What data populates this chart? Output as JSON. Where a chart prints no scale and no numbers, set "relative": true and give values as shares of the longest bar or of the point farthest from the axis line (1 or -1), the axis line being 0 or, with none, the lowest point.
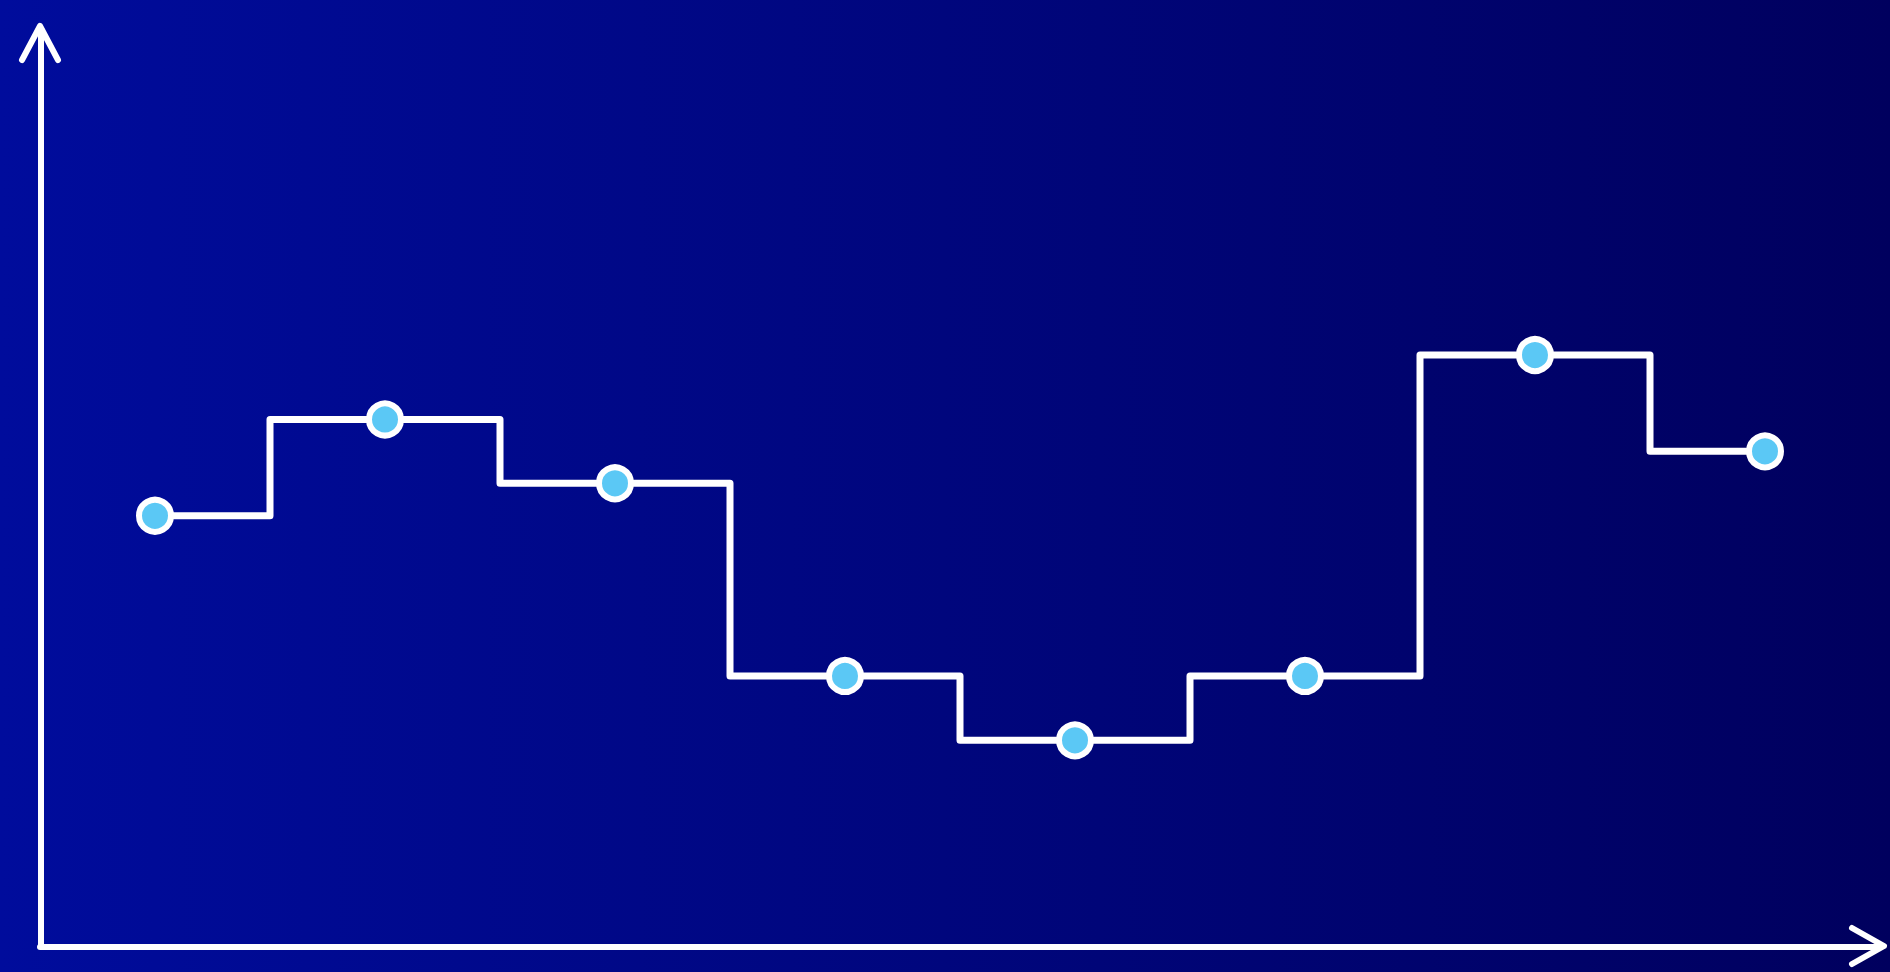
{
  "chart_data": {
    "type": "step",
    "relative": true,
    "categories": [
      null,
      null,
      null,
      null,
      null,
      null,
      null,
      null
    ],
    "series": [
      {
        "color": "#ffffff",
        "values": [
          0.728,
          0.891,
          0.783,
          0.457,
          0.348,
          0.457,
          1,
          0.837
        ]
      }
    ],
    "marker": "circle",
    "grid": false
  }
}
